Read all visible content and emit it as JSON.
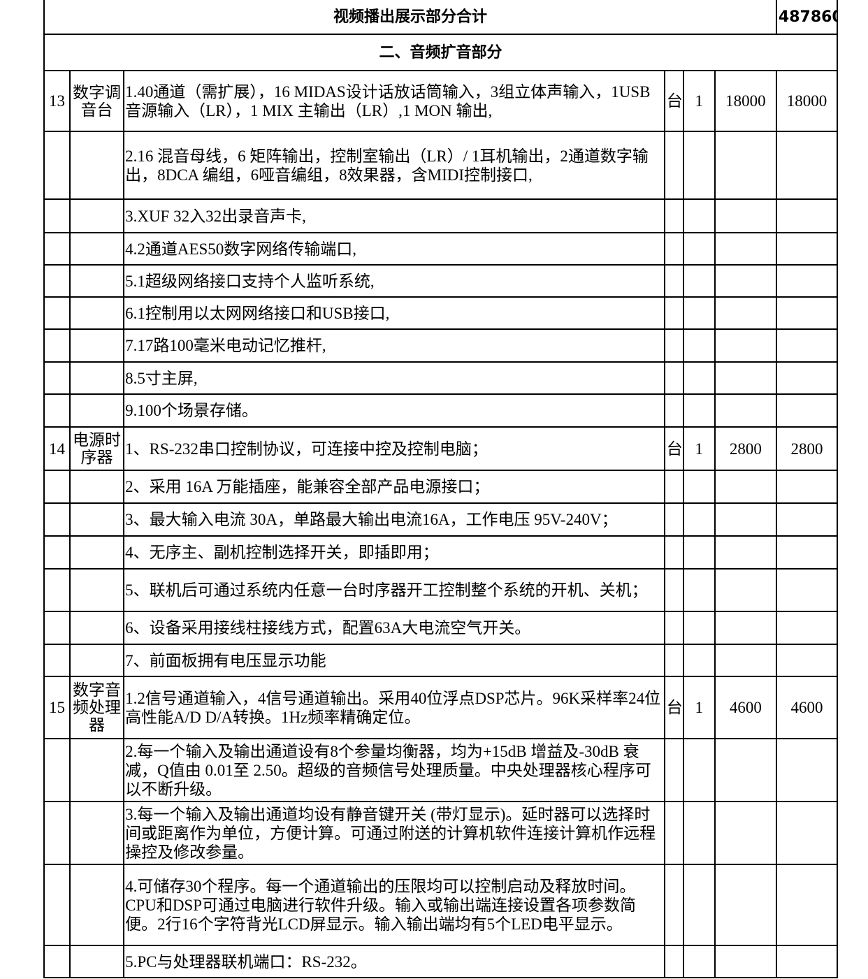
{
  "summary": {
    "label": "视频播出展示部分合计",
    "value": "487860"
  },
  "section_title": "二、音频扩音部分",
  "items": [
    {
      "no": "13",
      "name": "数字调音台",
      "unit": "台",
      "qty": "1",
      "price": "18000",
      "amount": "18000",
      "specs": [
        "1.40通道（需扩展），16 MIDAS设计话放话筒输入，3组立体声输入，1USB音源输入（LR），1 MIX 主输出（LR）,1 MON 输出,",
        "2.16 混音母线，6 矩阵输出，控制室输出（LR）/ 1耳机输出，2通道数字输出，8DCA 编组，6哑音编组，8效果器，含MIDI控制接口,",
        "3.XUF 32入32出录音声卡,",
        "4.2通道AES50数字网络传输端口,",
        "5.1超级网络接口支持个人监听系统,",
        "6.1控制用以太网网络接口和USB接口,",
        "7.17路100毫米电动记忆推杆,",
        "8.5寸主屏,",
        "9.100个场景存储。"
      ]
    },
    {
      "no": "14",
      "name": "电源时序器",
      "unit": "台",
      "qty": "1",
      "price": "2800",
      "amount": "2800",
      "specs": [
        "1、RS-232串口控制协议，可连接中控及控制电脑；",
        "2、采用 16A 万能插座，能兼容全部产品电源接口；",
        "3、最大输入电流 30A，单路最大输出电流16A，工作电压 95V-240V；",
        "4、无序主、副机控制选择开关，即插即用；",
        "5、联机后可通过系统内任意一台时序器开工控制整个系统的开机、关机；",
        "6、设备采用接线柱接线方式，配置63A大电流空气开关。",
        "7、前面板拥有电压显示功能"
      ]
    },
    {
      "no": "15",
      "name": "数字音频处理器",
      "unit": "台",
      "qty": "1",
      "price": "4600",
      "amount": "4600",
      "specs": [
        "1.2信号通道输入，4信号通道输出。采用40位浮点DSP芯片。96K采样率24位高性能A/D D/A转换。1Hz频率精确定位。",
        "2.每一个输入及输出通道设有8个参量均衡器，均为+15dB 增益及-30dB 衰减，Q值由 0.01至 2.50。超级的音频信号处理质量。中央处理器核心程序可以不断升级。",
        "3.每一个输入及输出通道均设有静音键开关 (带灯显示)。延时器可以选择时间或距离作为单位，方便计算。可通过附送的计算机软件连接计算机作远程操控及修改参量。",
        "4.可储存30个程序。每一个通道输出的压限均可以控制启动及释放时间。CPU和DSP可通过电脑进行软件升级。输入或输出端连接设置各项参数简便。2行16个字符背光LCD屏显示。输入输出端均有5个LED电平显示。",
        "5.PC与处理器联机端口：RS-232。"
      ]
    }
  ]
}
